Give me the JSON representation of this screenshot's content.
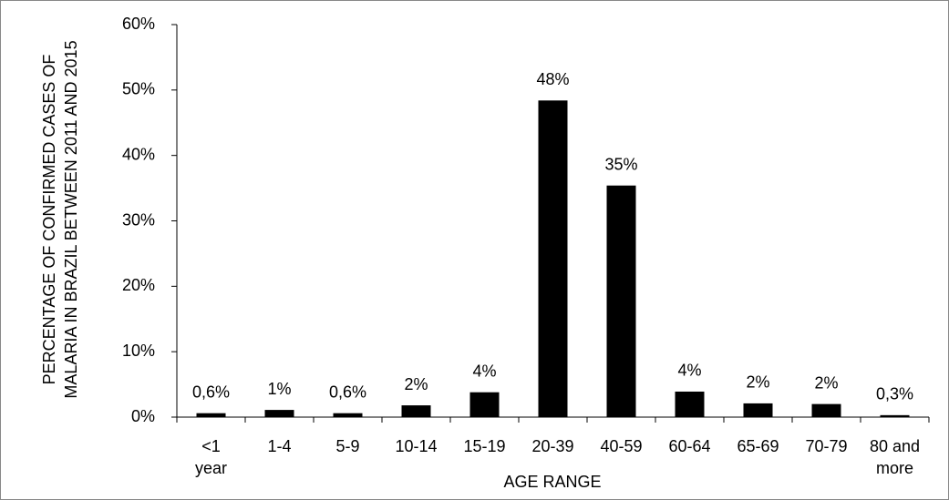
{
  "chart_data": {
    "type": "bar",
    "x_label": "AGE RANGE",
    "y_label": "PERCENTAGE OF CONFIRMED CASES OF MALARIA IN BRAZIL BETWEEN 2011 AND 2015",
    "categories": [
      "<1 year",
      "1-4",
      "5-9",
      "10-14",
      "15-19",
      "20-39",
      "40-59",
      "60-64",
      "65-69",
      "70-79",
      "80 and more"
    ],
    "values": [
      0.6,
      1.1,
      0.6,
      1.8,
      3.8,
      48.4,
      35.4,
      3.9,
      2.1,
      2.0,
      0.3
    ],
    "value_labels": [
      "0,6%",
      "1%",
      "0,6%",
      "2%",
      "4%",
      "48%",
      "35%",
      "4%",
      "2%",
      "2%",
      "0,3%"
    ],
    "color": "#000000",
    "ylim": [
      0,
      60
    ],
    "yticks": [
      {
        "value": 0,
        "label": "0%"
      },
      {
        "value": 10,
        "label": "10%"
      },
      {
        "value": 20,
        "label": "20%"
      },
      {
        "value": 30,
        "label": "30%"
      },
      {
        "value": 40,
        "label": "40%"
      },
      {
        "value": 50,
        "label": "50%"
      },
      {
        "value": 60,
        "label": "60%"
      }
    ],
    "grid": false
  }
}
